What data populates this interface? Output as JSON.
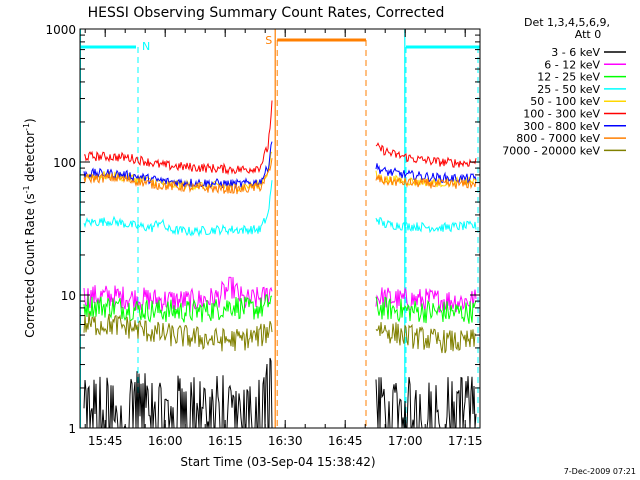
{
  "chart_data": {
    "type": "line",
    "title": "HESSI Observing Summary Count Rates, Corrected",
    "xlabel": "Start Time (03-Sep-04 15:38:42)",
    "ylabel_main": "Corrected Count Rate (s",
    "ylabel_sup1": "-1",
    "ylabel_mid": " detector",
    "ylabel_sup2": "-1",
    "ylabel_end": ")",
    "x_axis": {
      "start": "15:38:42",
      "range_minutes": [
        0,
        100
      ],
      "tick_labels": [
        "15:45",
        "16:00",
        "16:15",
        "16:30",
        "16:45",
        "17:00",
        "17:15"
      ],
      "tick_minutes": [
        6.3,
        21.3,
        36.3,
        51.3,
        66.3,
        81.3,
        96.3
      ]
    },
    "y_axis": {
      "scale": "log",
      "range": [
        1,
        1000
      ],
      "tick_labels": [
        "1",
        "10",
        "100",
        "1000"
      ],
      "tick_values": [
        1,
        10,
        100,
        1000
      ]
    },
    "grid": false,
    "legend": {
      "placement": "right",
      "header1": "Det 1,3,4,5,6,9,",
      "header2": "Att 0",
      "entries": [
        {
          "label": "3 - 6 keV",
          "color": "#000000"
        },
        {
          "label": "6 - 12 keV",
          "color": "#ff00ff"
        },
        {
          "label": "12 - 25 keV",
          "color": "#00ff00"
        },
        {
          "label": "25 - 50 keV",
          "color": "#00ffff"
        },
        {
          "label": "50 - 100 keV",
          "color": "#ffd700"
        },
        {
          "label": "100 - 300 keV",
          "color": "#ff0000"
        },
        {
          "label": "300 - 800 keV",
          "color": "#0000ff"
        },
        {
          "label": "800 - 7000 keV",
          "color": "#ff7f00"
        },
        {
          "label": "7000 - 20000 keV",
          "color": "#808000"
        }
      ]
    },
    "flags": [
      {
        "label": "N",
        "color": "#00ffff",
        "segments": [
          [
            0,
            14
          ],
          [
            81.5,
            100
          ]
        ],
        "boundaries": [
          14.5,
          81.5,
          99.5
        ]
      },
      {
        "label": "S",
        "color": "#ff7f00",
        "segments": [
          [
            49.3,
            71.5
          ]
        ],
        "boundaries": [
          49.3,
          71.5
        ]
      }
    ],
    "solid_vlines": [
      {
        "minute": 48.8,
        "color": "#ff7f00"
      },
      {
        "minute": 81.2,
        "color": "#00ffff"
      },
      {
        "minute": 0.1,
        "color": "#00ffff"
      }
    ],
    "series": [
      {
        "name": "3 - 6 keV",
        "color": "#000000",
        "segments": [
          [
            [
              1,
              1.4
            ],
            [
              5,
              1.6
            ],
            [
              10,
              1.3
            ],
            [
              14,
              1.7
            ],
            [
              18,
              1.5
            ],
            [
              22,
              1.2
            ],
            [
              26,
              1.8
            ],
            [
              30,
              1.4
            ],
            [
              35,
              1.6
            ],
            [
              40,
              1.3
            ],
            [
              45,
              1.5
            ],
            [
              47,
              2.5
            ],
            [
              48,
              3.0
            ]
          ],
          [
            [
              74,
              1.6
            ],
            [
              78,
              1.3
            ],
            [
              82,
              1.5
            ],
            [
              88,
              1.4
            ],
            [
              94,
              1.6
            ],
            [
              99,
              1.5
            ]
          ]
        ]
      },
      {
        "name": "6 - 12 keV",
        "color": "#ff00ff",
        "segments": [
          [
            [
              1,
              9.8
            ],
            [
              8,
              9.8
            ],
            [
              14,
              9.4
            ],
            [
              20,
              9.2
            ],
            [
              28,
              9.0
            ],
            [
              34,
              9.5
            ],
            [
              38,
              11.5
            ],
            [
              41,
              9.0
            ],
            [
              46,
              9.6
            ],
            [
              48,
              11
            ]
          ],
          [
            [
              74,
              9.7
            ],
            [
              80,
              9.2
            ],
            [
              88,
              9.2
            ],
            [
              96,
              9.0
            ],
            [
              99,
              9.2
            ]
          ]
        ]
      },
      {
        "name": "12 - 25 keV",
        "color": "#00ff00",
        "segments": [
          [
            [
              1,
              8.3
            ],
            [
              8,
              8.2
            ],
            [
              14,
              7.8
            ],
            [
              20,
              7.6
            ],
            [
              28,
              7.5
            ],
            [
              34,
              7.8
            ],
            [
              38,
              8.4
            ],
            [
              42,
              7.8
            ],
            [
              46,
              8.0
            ],
            [
              48,
              9.5
            ]
          ],
          [
            [
              74,
              8.0
            ],
            [
              80,
              7.7
            ],
            [
              88,
              7.5
            ],
            [
              96,
              7.4
            ],
            [
              99,
              7.6
            ]
          ]
        ]
      },
      {
        "name": "25 - 50 keV",
        "color": "#00ffff",
        "segments": [
          [
            [
              1,
              35
            ],
            [
              8,
              36
            ],
            [
              14,
              33
            ],
            [
              18,
              32
            ],
            [
              20,
              36
            ],
            [
              22,
              31
            ],
            [
              28,
              30
            ],
            [
              34,
              31
            ],
            [
              40,
              31
            ],
            [
              45,
              31
            ],
            [
              47,
              40
            ],
            [
              48,
              70
            ]
          ],
          [
            [
              74,
              38
            ],
            [
              76,
              34
            ],
            [
              82,
              33
            ],
            [
              90,
              32
            ],
            [
              96,
              33
            ],
            [
              99,
              33
            ]
          ]
        ]
      },
      {
        "name": "50 - 100 keV",
        "color": "#ffd700",
        "segments": [
          [
            [
              1,
              79
            ],
            [
              8,
              79
            ],
            [
              14,
              75
            ],
            [
              18,
              72
            ],
            [
              22,
              68
            ],
            [
              28,
              67
            ],
            [
              34,
              66
            ],
            [
              40,
              65
            ],
            [
              45,
              68
            ],
            [
              47,
              85
            ],
            [
              48,
              120
            ]
          ],
          [
            [
              74,
              80
            ],
            [
              76,
              74
            ],
            [
              82,
              72
            ],
            [
              90,
              70
            ],
            [
              96,
              71
            ],
            [
              99,
              72
            ]
          ]
        ]
      },
      {
        "name": "100 - 300 keV",
        "color": "#ff0000",
        "segments": [
          [
            [
              1,
              110
            ],
            [
              6,
              110
            ],
            [
              12,
              108
            ],
            [
              16,
              102
            ],
            [
              20,
              95
            ],
            [
              26,
              92
            ],
            [
              32,
              90
            ],
            [
              38,
              88
            ],
            [
              42,
              88
            ],
            [
              45,
              92
            ],
            [
              47,
              130
            ],
            [
              48,
              270
            ]
          ],
          [
            [
              74,
              130
            ],
            [
              78,
              115
            ],
            [
              84,
              105
            ],
            [
              90,
              100
            ],
            [
              96,
              98
            ],
            [
              99,
              101
            ]
          ]
        ]
      },
      {
        "name": "300 - 800 keV",
        "color": "#0000ff",
        "segments": [
          [
            [
              1,
              82
            ],
            [
              8,
              82
            ],
            [
              14,
              78
            ],
            [
              18,
              74
            ],
            [
              22,
              71
            ],
            [
              28,
              70
            ],
            [
              34,
              69
            ],
            [
              40,
              68
            ],
            [
              45,
              71
            ],
            [
              47,
              90
            ],
            [
              48,
              150
            ]
          ],
          [
            [
              74,
              92
            ],
            [
              76,
              85
            ],
            [
              82,
              80
            ],
            [
              90,
              76
            ],
            [
              96,
              75
            ],
            [
              99,
              76
            ]
          ]
        ]
      },
      {
        "name": "800 - 7000 keV",
        "color": "#ff7f00",
        "segments": [
          [
            [
              1,
              75
            ],
            [
              8,
              76
            ],
            [
              14,
              72
            ],
            [
              18,
              68
            ],
            [
              22,
              66
            ],
            [
              28,
              64
            ],
            [
              34,
              63
            ],
            [
              40,
              62
            ],
            [
              45,
              65
            ],
            [
              47,
              80
            ],
            [
              48,
              100
            ]
          ],
          [
            [
              74,
              76
            ],
            [
              76,
              72
            ],
            [
              82,
              70
            ],
            [
              90,
              68
            ],
            [
              96,
              68
            ],
            [
              99,
              69
            ]
          ]
        ]
      },
      {
        "name": "7000 - 20000 keV",
        "color": "#808000",
        "segments": [
          [
            [
              1,
              6.0
            ],
            [
              8,
              6.0
            ],
            [
              14,
              5.6
            ],
            [
              20,
              5.1
            ],
            [
              28,
              4.8
            ],
            [
              34,
              4.6
            ],
            [
              40,
              4.6
            ],
            [
              46,
              5.0
            ],
            [
              48,
              6.0
            ]
          ],
          [
            [
              74,
              5.8
            ],
            [
              78,
              5.2
            ],
            [
              84,
              4.8
            ],
            [
              90,
              4.5
            ],
            [
              96,
              4.4
            ],
            [
              99,
              4.6
            ]
          ]
        ]
      }
    ]
  },
  "footer": {
    "timestamp": "7-Dec-2009 07:21"
  }
}
